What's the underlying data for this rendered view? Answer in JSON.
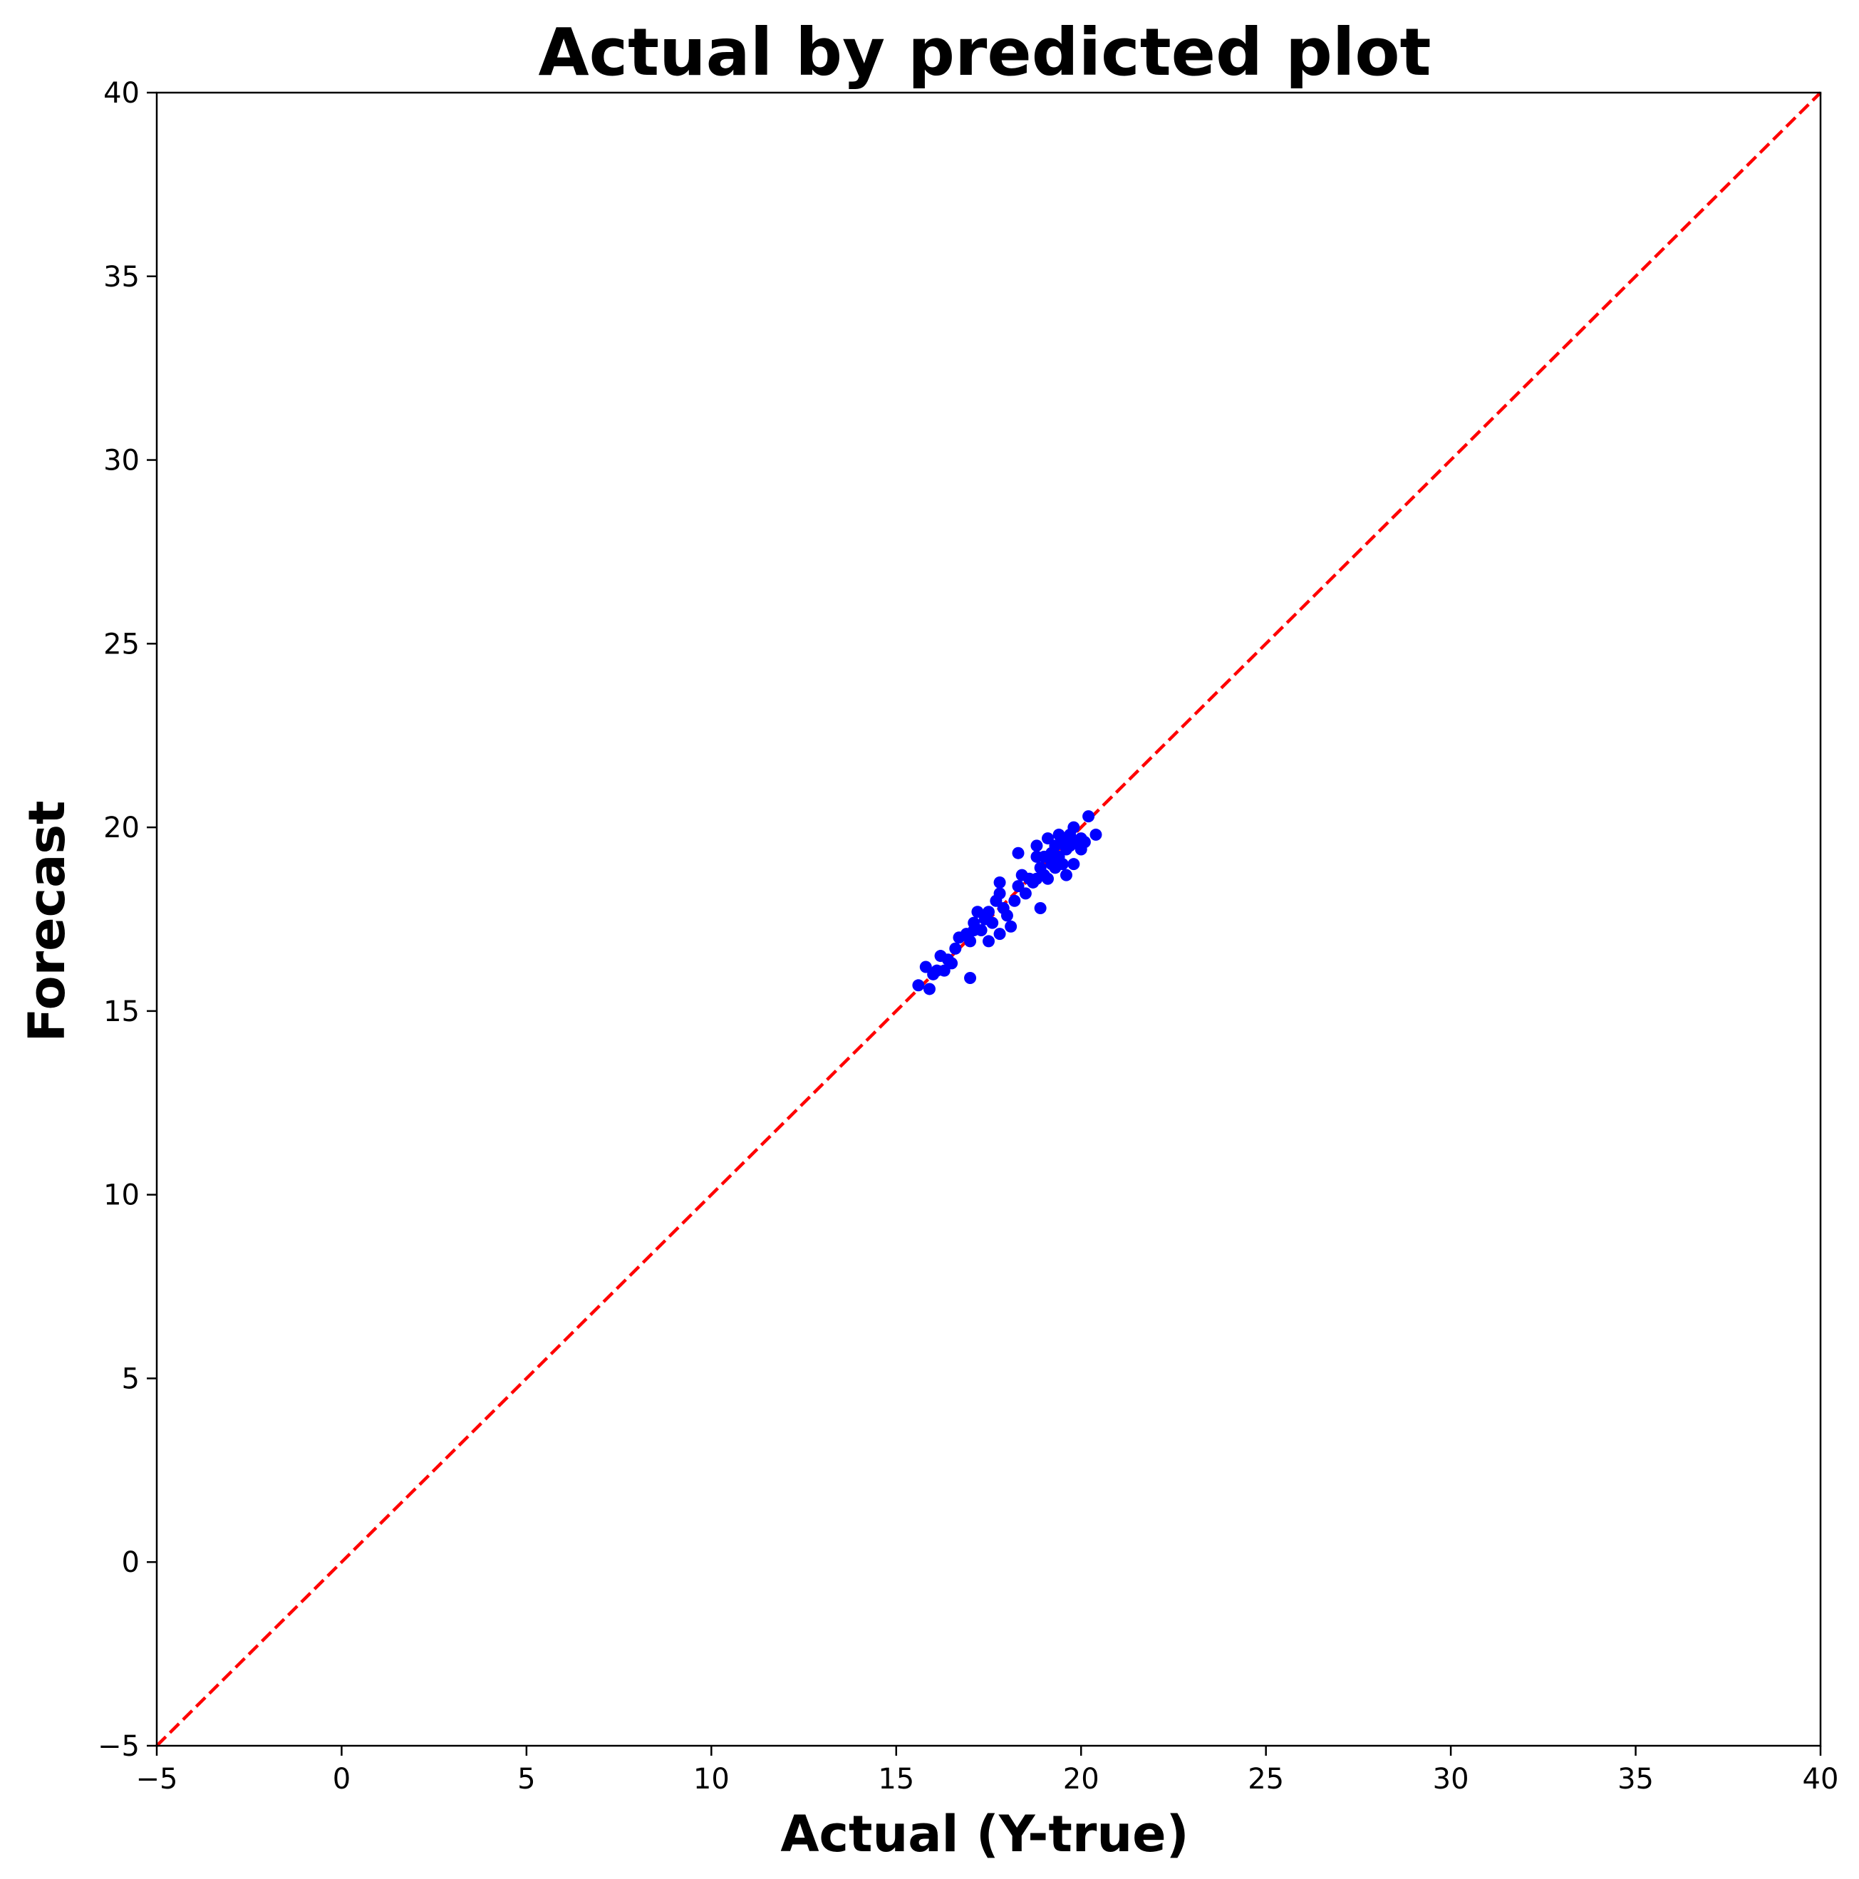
{
  "chart_data": {
    "type": "scatter",
    "title": "Actual by predicted plot",
    "xlabel": "Actual (Y-true)",
    "ylabel": "Forecast",
    "xlim": [
      -5,
      40
    ],
    "ylim": [
      -5,
      40
    ],
    "xticks": [
      -5,
      0,
      5,
      10,
      15,
      20,
      25,
      30,
      35,
      40
    ],
    "yticks": [
      -5,
      0,
      5,
      10,
      15,
      20,
      25,
      30,
      35,
      40
    ],
    "xtick_labels": [
      "−5",
      "0",
      "5",
      "10",
      "15",
      "20",
      "25",
      "30",
      "35",
      "40"
    ],
    "ytick_labels": [
      "−5",
      "0",
      "5",
      "10",
      "15",
      "20",
      "25",
      "30",
      "35",
      "40"
    ],
    "grid": false,
    "point_color": "#0000ff",
    "reference_line": {
      "x": [
        -5,
        40
      ],
      "y": [
        -5,
        40
      ],
      "color": "#ff0000",
      "style": "dashed"
    },
    "points": [
      [
        15.6,
        15.7
      ],
      [
        15.8,
        16.2
      ],
      [
        15.9,
        15.6
      ],
      [
        16.0,
        16.0
      ],
      [
        16.1,
        16.1
      ],
      [
        16.2,
        16.5
      ],
      [
        16.3,
        16.1
      ],
      [
        16.4,
        16.4
      ],
      [
        16.5,
        16.3
      ],
      [
        16.6,
        16.7
      ],
      [
        16.7,
        17.0
      ],
      [
        16.9,
        17.1
      ],
      [
        17.0,
        15.9
      ],
      [
        17.0,
        16.9
      ],
      [
        17.1,
        17.4
      ],
      [
        17.1,
        17.2
      ],
      [
        17.2,
        17.7
      ],
      [
        17.3,
        17.2
      ],
      [
        17.4,
        17.5
      ],
      [
        17.5,
        16.9
      ],
      [
        17.5,
        17.7
      ],
      [
        17.6,
        17.4
      ],
      [
        17.7,
        18.0
      ],
      [
        17.8,
        17.1
      ],
      [
        17.8,
        18.2
      ],
      [
        17.8,
        18.5
      ],
      [
        17.9,
        17.8
      ],
      [
        18.0,
        17.6
      ],
      [
        18.1,
        17.3
      ],
      [
        18.2,
        18.0
      ],
      [
        18.3,
        19.3
      ],
      [
        18.3,
        18.4
      ],
      [
        18.4,
        18.7
      ],
      [
        18.5,
        18.2
      ],
      [
        18.6,
        18.6
      ],
      [
        18.7,
        18.5
      ],
      [
        18.8,
        19.5
      ],
      [
        18.8,
        19.2
      ],
      [
        18.8,
        18.6
      ],
      [
        18.9,
        17.8
      ],
      [
        18.9,
        18.9
      ],
      [
        19.0,
        18.7
      ],
      [
        19.0,
        19.2
      ],
      [
        19.1,
        19.7
      ],
      [
        19.1,
        18.6
      ],
      [
        19.2,
        19.0
      ],
      [
        19.2,
        19.3
      ],
      [
        19.3,
        18.9
      ],
      [
        19.3,
        19.5
      ],
      [
        19.4,
        19.8
      ],
      [
        19.4,
        19.2
      ],
      [
        19.5,
        19.0
      ],
      [
        19.5,
        19.6
      ],
      [
        19.6,
        18.7
      ],
      [
        19.6,
        19.4
      ],
      [
        19.7,
        19.8
      ],
      [
        19.7,
        19.5
      ],
      [
        19.8,
        19.0
      ],
      [
        19.8,
        20.0
      ],
      [
        19.9,
        19.6
      ],
      [
        20.0,
        19.7
      ],
      [
        20.0,
        19.4
      ],
      [
        20.1,
        19.6
      ],
      [
        20.2,
        20.3
      ],
      [
        20.4,
        19.8
      ]
    ]
  }
}
